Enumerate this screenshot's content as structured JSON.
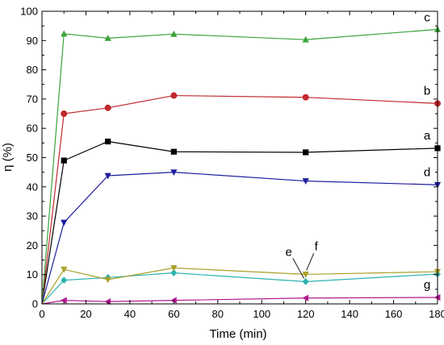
{
  "chart_data": {
    "type": "line",
    "title": "",
    "xlabel": "Time (min)",
    "ylabel": "η (%)",
    "xlim": [
      0,
      180
    ],
    "ylim": [
      0,
      100
    ],
    "xticks": [
      0,
      20,
      40,
      60,
      80,
      100,
      120,
      140,
      160,
      180
    ],
    "yticks": [
      0,
      10,
      20,
      30,
      40,
      50,
      60,
      70,
      80,
      90,
      100
    ],
    "grid": false,
    "legend": "none",
    "x": [
      0,
      10,
      30,
      60,
      120,
      180
    ],
    "series": [
      {
        "name": "a",
        "color": "#000000",
        "marker": "square",
        "values": [
          0,
          49,
          55.5,
          52,
          51.8,
          53.2
        ]
      },
      {
        "name": "b",
        "color": "#c0282d",
        "marker": "circle",
        "values": [
          0,
          65,
          67,
          71.2,
          70.6,
          68.5
        ]
      },
      {
        "name": "c",
        "color": "#3aa33a",
        "marker": "triangle-up",
        "values": [
          0,
          92.3,
          90.8,
          92.2,
          90.3,
          93.8
        ]
      },
      {
        "name": "d",
        "color": "#1d1d9e",
        "marker": "triangle-down",
        "values": [
          0,
          27.8,
          43.8,
          45,
          42,
          40.7
        ]
      },
      {
        "name": "e",
        "color": "#2bb3b0",
        "marker": "diamond",
        "values": [
          0,
          8.1,
          9,
          10.6,
          7.6,
          10.2
        ]
      },
      {
        "name": "f",
        "color": "#a9a02a",
        "marker": "triangle-down",
        "values": [
          0,
          11.8,
          8.3,
          12.3,
          10.1,
          11
        ]
      },
      {
        "name": "g",
        "color": "#b0188f",
        "marker": "triangle-left",
        "values": [
          0,
          1.2,
          0.8,
          1.2,
          2,
          2.2
        ]
      }
    ]
  }
}
